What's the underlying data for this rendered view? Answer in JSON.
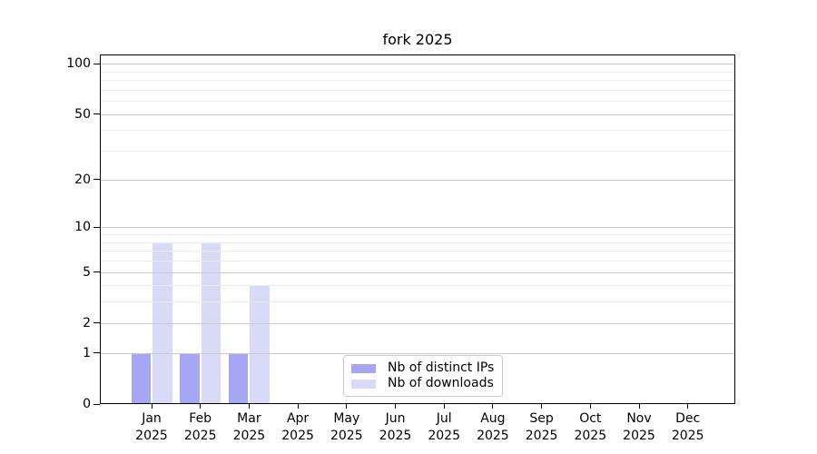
{
  "chart_data": {
    "type": "bar",
    "title": "fork 2025",
    "categories": [
      "Jan 2025",
      "Feb 2025",
      "Mar 2025",
      "Apr 2025",
      "May 2025",
      "Jun 2025",
      "Jul 2025",
      "Aug 2025",
      "Sep 2025",
      "Oct 2025",
      "Nov 2025",
      "Dec 2025"
    ],
    "series": [
      {
        "name": "Nb of distinct IPs",
        "color": "#a6a6f4",
        "values": [
          1,
          1,
          1,
          0,
          0,
          0,
          0,
          0,
          0,
          0,
          0,
          0
        ]
      },
      {
        "name": "Nb of downloads",
        "color": "#d9d9f8",
        "values": [
          8,
          8,
          4,
          0,
          0,
          0,
          0,
          0,
          0,
          0,
          0,
          0
        ]
      }
    ],
    "xlabel": "",
    "ylabel": "",
    "yscale": "log1p",
    "yticks": [
      0,
      1,
      2,
      5,
      10,
      20,
      50,
      100
    ],
    "y_minor_gridlines": [
      3,
      4,
      6,
      7,
      8,
      9,
      30,
      40,
      60,
      70,
      80,
      90
    ],
    "ylim": [
      0,
      113
    ],
    "grid": "on",
    "legend_position": "lower center"
  },
  "colors": {
    "background": "#ffffff",
    "spine": "#000000",
    "major_grid": "#c9c9c9",
    "minor_grid": "#ebebeb"
  }
}
